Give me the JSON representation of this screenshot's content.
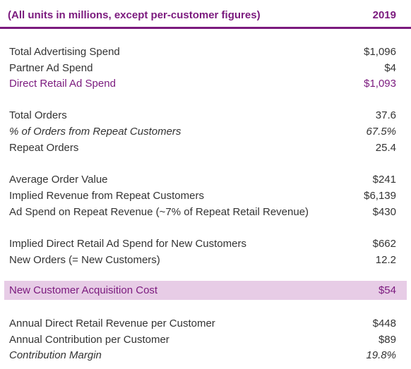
{
  "header": {
    "units_label": "(All units in millions, except per-customer figures)",
    "year": "2019"
  },
  "rows": [
    {
      "label": "Total Advertising Spend",
      "value": "$1,096"
    },
    {
      "label": "Partner Ad Spend",
      "value": "$4"
    },
    {
      "label": "Direct Retail Ad Spend",
      "value": "$1,093"
    },
    {
      "label": "Total Orders",
      "value": "37.6"
    },
    {
      "label": "% of Orders from Repeat Customers",
      "value": "67.5%"
    },
    {
      "label": "Repeat Orders",
      "value": "25.4"
    },
    {
      "label": "Average Order Value",
      "value": "$241"
    },
    {
      "label": "Implied Revenue from Repeat Customers",
      "value": "$6,139"
    },
    {
      "label": "Ad Spend on Repeat Revenue (~7% of Repeat Retail Revenue)",
      "value": "$430"
    },
    {
      "label": "Implied Direct Retail Ad Spend for New Customers",
      "value": "$662"
    },
    {
      "label": "New Orders (= New Customers)",
      "value": "12.2"
    },
    {
      "label": "New Customer Acquisition Cost",
      "value": "$54"
    },
    {
      "label": "Annual Direct Retail Revenue per Customer",
      "value": "$448"
    },
    {
      "label": "Annual Contribution per Customer",
      "value": "$89"
    },
    {
      "label": "Contribution Margin",
      "value": "19.8%"
    }
  ],
  "colors": {
    "accent": "#7b1a7e",
    "highlight_background": "#e7cce6",
    "text": "#333333"
  }
}
